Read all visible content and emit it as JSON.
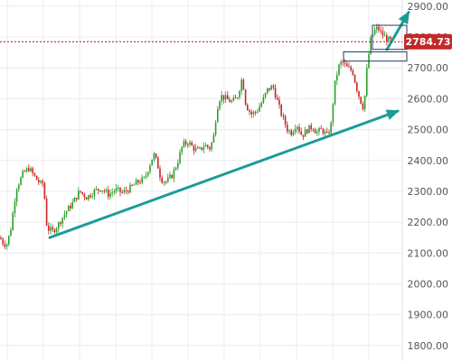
{
  "chart_data": {
    "type": "candlestick",
    "title": "",
    "xlabel": "",
    "ylabel": "",
    "y_axis_position": "right",
    "ylim": [
      1750,
      2920
    ],
    "y_ticks": [
      1800,
      1900,
      2000,
      2100,
      2200,
      2300,
      2400,
      2500,
      2600,
      2700,
      2800,
      2900
    ],
    "y_tick_labels": [
      "1800.00",
      "1900.00",
      "2000.00",
      "2100.00",
      "2200.00",
      "2300.00",
      "2400.00",
      "2500.00",
      "2600.00",
      "2700.00",
      "2800.00",
      "2900.00"
    ],
    "grid": true,
    "colors": {
      "up": "#2ca02c",
      "down": "#c62828",
      "trendline": "#1a9c96",
      "price_line": "#8b1a1a",
      "price_tag": "#c62828",
      "grid": "#ececec",
      "boxes": "#1f3a66"
    },
    "current_price": {
      "value": 2784.73,
      "label": "2784.73"
    },
    "price_path": [
      [
        0,
        2150
      ],
      [
        4,
        2130
      ],
      [
        8,
        2130
      ],
      [
        12,
        2180
      ],
      [
        18,
        2310
      ],
      [
        26,
        2360
      ],
      [
        32,
        2375
      ],
      [
        40,
        2340
      ],
      [
        46,
        2320
      ],
      [
        48,
        2330
      ],
      [
        52,
        2180
      ],
      [
        58,
        2170
      ],
      [
        64,
        2190
      ],
      [
        72,
        2230
      ],
      [
        80,
        2260
      ],
      [
        88,
        2300
      ],
      [
        96,
        2280
      ],
      [
        104,
        2300
      ],
      [
        112,
        2310
      ],
      [
        120,
        2290
      ],
      [
        128,
        2305
      ],
      [
        136,
        2295
      ],
      [
        144,
        2310
      ],
      [
        152,
        2330
      ],
      [
        160,
        2340
      ],
      [
        166,
        2390
      ],
      [
        170,
        2420
      ],
      [
        174,
        2390
      ],
      [
        178,
        2340
      ],
      [
        184,
        2330
      ],
      [
        190,
        2350
      ],
      [
        196,
        2390
      ],
      [
        202,
        2450
      ],
      [
        208,
        2460
      ],
      [
        214,
        2440
      ],
      [
        220,
        2430
      ],
      [
        226,
        2450
      ],
      [
        232,
        2440
      ],
      [
        236,
        2470
      ],
      [
        240,
        2570
      ],
      [
        244,
        2610
      ],
      [
        250,
        2600
      ],
      [
        256,
        2590
      ],
      [
        262,
        2600
      ],
      [
        268,
        2670
      ],
      [
        272,
        2580
      ],
      [
        278,
        2550
      ],
      [
        284,
        2560
      ],
      [
        290,
        2590
      ],
      [
        296,
        2630
      ],
      [
        302,
        2640
      ],
      [
        306,
        2600
      ],
      [
        310,
        2560
      ],
      [
        314,
        2530
      ],
      [
        318,
        2500
      ],
      [
        322,
        2490
      ],
      [
        328,
        2520
      ],
      [
        334,
        2480
      ],
      [
        340,
        2500
      ],
      [
        346,
        2510
      ],
      [
        350,
        2490
      ],
      [
        356,
        2500
      ],
      [
        362,
        2480
      ],
      [
        366,
        2510
      ],
      [
        370,
        2640
      ],
      [
        374,
        2700
      ],
      [
        378,
        2720
      ],
      [
        384,
        2700
      ],
      [
        390,
        2690
      ],
      [
        394,
        2640
      ],
      [
        398,
        2600
      ],
      [
        402,
        2570
      ],
      [
        404,
        2620
      ],
      [
        406,
        2700
      ],
      [
        410,
        2790
      ],
      [
        414,
        2820
      ],
      [
        418,
        2830
      ],
      [
        422,
        2810
      ],
      [
        426,
        2800
      ],
      [
        430,
        2790
      ],
      [
        436,
        2784.73
      ]
    ],
    "annotations": [
      {
        "type": "trendline",
        "from": [
          55,
          2150
        ],
        "to": [
          440,
          2560
        ],
        "arrow": true
      },
      {
        "type": "trendline",
        "from": [
          428,
          2760
        ],
        "to": [
          452,
          2880
        ],
        "arrow": true
      },
      {
        "type": "box",
        "x0": 380,
        "x1": 450,
        "y0": 2722,
        "y1": 2752
      },
      {
        "type": "box",
        "x0": 412,
        "x1": 450,
        "y0": 2760,
        "y1": 2838
      }
    ]
  }
}
